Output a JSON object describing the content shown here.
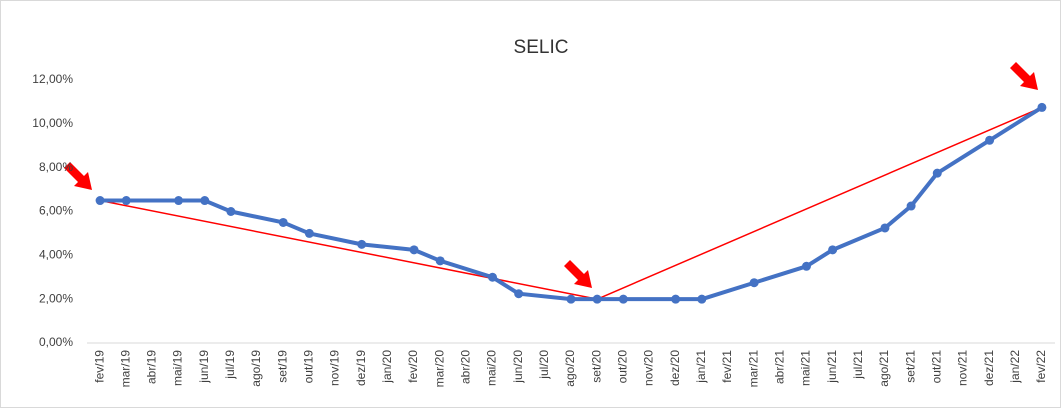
{
  "chart_data": {
    "type": "line",
    "title": "SELIC",
    "categories": [
      "fev/19",
      "mar/19",
      "abr/19",
      "mai/19",
      "jun/19",
      "jul/19",
      "ago/19",
      "set/19",
      "out/19",
      "nov/19",
      "dez/19",
      "jan/20",
      "fev/20",
      "mar/20",
      "abr/20",
      "mai/20",
      "jun/20",
      "jul/20",
      "ago/20",
      "set/20",
      "out/20",
      "nov/20",
      "dez/20",
      "jan/21",
      "fev/21",
      "mar/21",
      "abr/21",
      "mai/21",
      "jun/21",
      "jul/21",
      "ago/21",
      "set/21",
      "out/21",
      "nov/21",
      "dez/21",
      "jan/22",
      "fev/22"
    ],
    "series": [
      {
        "color": "#4472c4",
        "markers": true,
        "connect_gaps": true,
        "values": [
          6.5,
          6.5,
          null,
          6.5,
          6.5,
          6.0,
          null,
          5.5,
          5.0,
          null,
          4.5,
          null,
          4.25,
          3.75,
          null,
          3.0,
          2.25,
          null,
          2.0,
          2.0,
          2.0,
          null,
          2.0,
          2.0,
          null,
          2.75,
          null,
          3.5,
          4.25,
          null,
          5.25,
          6.25,
          7.75,
          null,
          9.25,
          null,
          10.75
        ]
      },
      {
        "color": "#ff0000",
        "markers": false,
        "connect_gaps": true,
        "values": [
          6.5,
          null,
          null,
          null,
          null,
          null,
          null,
          null,
          null,
          null,
          null,
          null,
          null,
          null,
          null,
          null,
          null,
          null,
          null,
          2.0,
          null,
          null,
          null,
          null,
          null,
          null,
          null,
          null,
          null,
          null,
          null,
          null,
          null,
          null,
          null,
          null,
          10.75
        ]
      }
    ],
    "ylim": [
      0,
      12
    ],
    "yticks": [
      {
        "value": 0,
        "label": "0,00%"
      },
      {
        "value": 2,
        "label": "2,00%"
      },
      {
        "value": 4,
        "label": "4,00%"
      },
      {
        "value": 6,
        "label": "6,00%"
      },
      {
        "value": 8,
        "label": "8,00%"
      },
      {
        "value": 10,
        "label": "10,00%"
      },
      {
        "value": 12,
        "label": "12,00%"
      }
    ],
    "grid": false
  }
}
